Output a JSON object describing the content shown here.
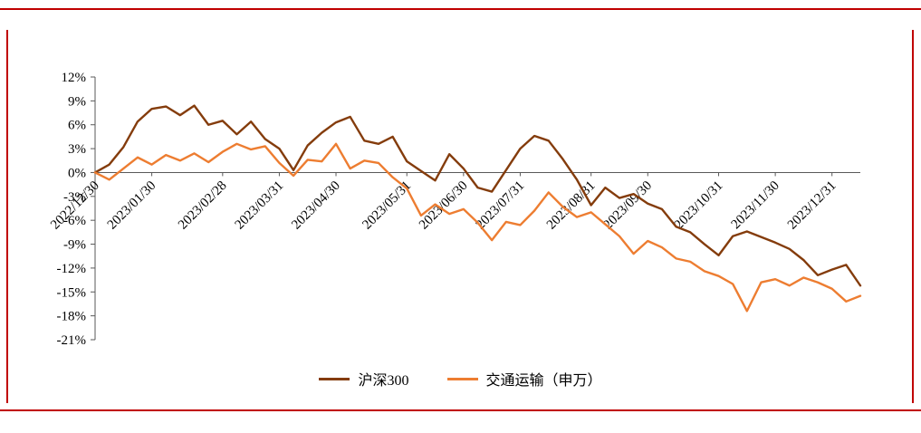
{
  "frame": {
    "border_color": "#C00000"
  },
  "axis_color": "#595959",
  "chart_data": {
    "type": "line",
    "title": "",
    "xlabel": "",
    "ylabel": "",
    "grid": false,
    "legend_position": "bottom",
    "ylim": [
      -21,
      12
    ],
    "y_ticks": [
      12,
      9,
      6,
      3,
      0,
      -3,
      -6,
      -9,
      -12,
      -15,
      -18,
      -21
    ],
    "y_tick_suffix": "%",
    "x_labels": [
      "2022/12/30",
      "2023/01/30",
      "2023/02/28",
      "2023/03/31",
      "2023/04/30",
      "2023/05/31",
      "2023/06/30",
      "2023/07/31",
      "2023/08/31",
      "2023/09/30",
      "2023/10/31",
      "2023/11/30",
      "2023/12/31"
    ],
    "x_label_indices": [
      0,
      4,
      9,
      13,
      17,
      22,
      26,
      30,
      35,
      39,
      44,
      48,
      52
    ],
    "series": [
      {
        "name": "沪深300",
        "color": "#843C0C",
        "values": [
          0.0,
          1.0,
          3.2,
          6.4,
          8.0,
          8.3,
          7.2,
          8.4,
          6.0,
          6.5,
          4.8,
          6.4,
          4.2,
          3.0,
          0.3,
          3.4,
          5.0,
          6.3,
          7.0,
          4.0,
          3.6,
          4.5,
          1.4,
          0.2,
          -1.0,
          2.3,
          0.5,
          -1.9,
          -2.4,
          0.3,
          3.0,
          4.6,
          4.0,
          1.7,
          -0.9,
          -4.1,
          -1.9,
          -3.2,
          -2.7,
          -3.9,
          -4.6,
          -6.8,
          -7.5,
          -9.0,
          -10.4,
          -8.0,
          -7.4,
          -8.1,
          -8.8,
          -9.6,
          -11.0,
          -12.9,
          -12.2,
          -11.6,
          -14.2
        ]
      },
      {
        "name": "交通运输（申万）",
        "color": "#ED7D31",
        "values": [
          0.0,
          -0.9,
          0.5,
          1.9,
          1.0,
          2.2,
          1.5,
          2.4,
          1.3,
          2.6,
          3.6,
          2.9,
          3.3,
          1.2,
          -0.4,
          1.6,
          1.4,
          3.6,
          0.5,
          1.5,
          1.2,
          -0.6,
          -2.0,
          -5.4,
          -4.0,
          -5.2,
          -4.6,
          -6.3,
          -8.5,
          -6.2,
          -6.6,
          -4.8,
          -2.5,
          -4.3,
          -5.6,
          -5.0,
          -6.5,
          -8.0,
          -10.2,
          -8.6,
          -9.4,
          -10.8,
          -11.2,
          -12.4,
          -13.0,
          -14.0,
          -17.4,
          -13.8,
          -13.4,
          -14.2,
          -13.2,
          -13.8,
          -14.6,
          -16.2,
          -15.5
        ]
      }
    ]
  }
}
